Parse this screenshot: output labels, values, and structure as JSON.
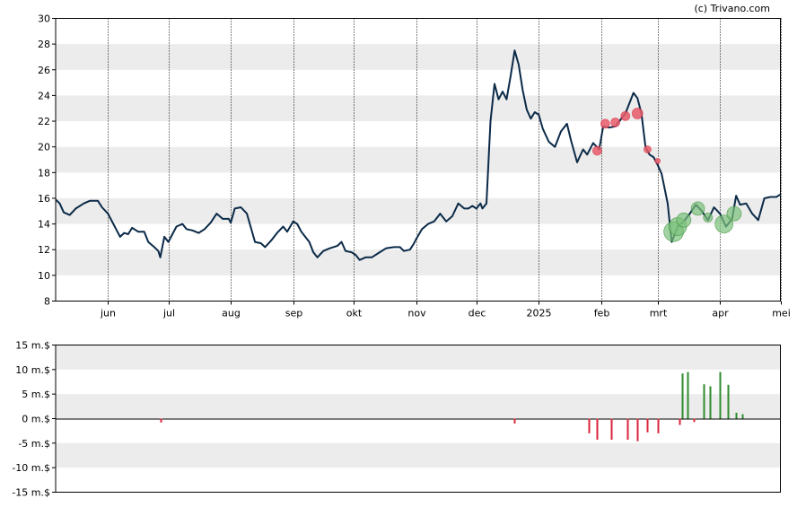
{
  "credit": "(c) Trivano.com",
  "colors": {
    "line": "#0b2a48",
    "band": "#ececec",
    "buy": "#2e8b2e",
    "sell": "#d9263b",
    "buy_marker": "#7ac07a",
    "sell_marker": "#e85a6a"
  },
  "chart_data": [
    {
      "type": "line",
      "title": "",
      "xlabel": "",
      "ylabel": "",
      "ylim": [
        8,
        30
      ],
      "yticks": [
        8,
        10,
        12,
        14,
        16,
        18,
        20,
        22,
        24,
        26,
        28,
        30
      ],
      "xlim": [
        "2024-05-06",
        "2025-05-01"
      ],
      "xticks": [
        {
          "date": "2024-06-01",
          "label": "jun"
        },
        {
          "date": "2024-07-01",
          "label": "jul"
        },
        {
          "date": "2024-08-01",
          "label": "aug"
        },
        {
          "date": "2024-09-01",
          "label": "sep"
        },
        {
          "date": "2024-10-01",
          "label": "okt"
        },
        {
          "date": "2024-11-01",
          "label": "nov"
        },
        {
          "date": "2024-12-01",
          "label": "dec"
        },
        {
          "date": "2025-01-01",
          "label": "2025"
        },
        {
          "date": "2025-02-01",
          "label": "feb"
        },
        {
          "date": "2025-03-01",
          "label": "mrt"
        },
        {
          "date": "2025-04-01",
          "label": "apr"
        },
        {
          "date": "2025-05-01",
          "label": "mei"
        }
      ],
      "grid": "alternating horizontal bands, dotted vertical month lines",
      "series": [
        {
          "points": [
            [
              "2024-05-06",
              15.9
            ],
            [
              "2024-05-08",
              15.6
            ],
            [
              "2024-05-10",
              14.9
            ],
            [
              "2024-05-13",
              14.7
            ],
            [
              "2024-05-16",
              15.2
            ],
            [
              "2024-05-20",
              15.6
            ],
            [
              "2024-05-23",
              15.8
            ],
            [
              "2024-05-27",
              15.8
            ],
            [
              "2024-05-29",
              15.3
            ],
            [
              "2024-06-01",
              14.8
            ],
            [
              "2024-06-03",
              14.2
            ],
            [
              "2024-06-05",
              13.6
            ],
            [
              "2024-06-07",
              13.0
            ],
            [
              "2024-06-09",
              13.3
            ],
            [
              "2024-06-11",
              13.2
            ],
            [
              "2024-06-13",
              13.7
            ],
            [
              "2024-06-16",
              13.4
            ],
            [
              "2024-06-19",
              13.4
            ],
            [
              "2024-06-21",
              12.6
            ],
            [
              "2024-06-24",
              12.2
            ],
            [
              "2024-06-26",
              11.9
            ],
            [
              "2024-06-27",
              11.4
            ],
            [
              "2024-06-29",
              13.0
            ],
            [
              "2024-07-01",
              12.6
            ],
            [
              "2024-07-03",
              13.2
            ],
            [
              "2024-07-05",
              13.8
            ],
            [
              "2024-07-08",
              14.0
            ],
            [
              "2024-07-10",
              13.6
            ],
            [
              "2024-07-13",
              13.5
            ],
            [
              "2024-07-16",
              13.3
            ],
            [
              "2024-07-19",
              13.6
            ],
            [
              "2024-07-22",
              14.1
            ],
            [
              "2024-07-25",
              14.8
            ],
            [
              "2024-07-28",
              14.4
            ],
            [
              "2024-07-31",
              14.4
            ],
            [
              "2024-08-01",
              14.1
            ],
            [
              "2024-08-03",
              15.2
            ],
            [
              "2024-08-06",
              15.3
            ],
            [
              "2024-08-09",
              14.8
            ],
            [
              "2024-08-11",
              13.7
            ],
            [
              "2024-08-13",
              12.6
            ],
            [
              "2024-08-16",
              12.5
            ],
            [
              "2024-08-18",
              12.2
            ],
            [
              "2024-08-21",
              12.7
            ],
            [
              "2024-08-24",
              13.3
            ],
            [
              "2024-08-27",
              13.8
            ],
            [
              "2024-08-29",
              13.4
            ],
            [
              "2024-09-01",
              14.2
            ],
            [
              "2024-09-03",
              14.0
            ],
            [
              "2024-09-05",
              13.4
            ],
            [
              "2024-09-07",
              13.0
            ],
            [
              "2024-09-09",
              12.6
            ],
            [
              "2024-09-11",
              11.8
            ],
            [
              "2024-09-13",
              11.4
            ],
            [
              "2024-09-16",
              11.9
            ],
            [
              "2024-09-19",
              12.1
            ],
            [
              "2024-09-23",
              12.3
            ],
            [
              "2024-09-25",
              12.6
            ],
            [
              "2024-09-27",
              11.9
            ],
            [
              "2024-09-30",
              11.8
            ],
            [
              "2024-10-02",
              11.6
            ],
            [
              "2024-10-04",
              11.2
            ],
            [
              "2024-10-07",
              11.4
            ],
            [
              "2024-10-10",
              11.4
            ],
            [
              "2024-10-14",
              11.8
            ],
            [
              "2024-10-17",
              12.1
            ],
            [
              "2024-10-21",
              12.2
            ],
            [
              "2024-10-24",
              12.2
            ],
            [
              "2024-10-26",
              11.9
            ],
            [
              "2024-10-29",
              12.0
            ],
            [
              "2024-10-31",
              12.5
            ],
            [
              "2024-11-01",
              12.8
            ],
            [
              "2024-11-04",
              13.6
            ],
            [
              "2024-11-07",
              14.0
            ],
            [
              "2024-11-10",
              14.2
            ],
            [
              "2024-11-13",
              14.8
            ],
            [
              "2024-11-16",
              14.2
            ],
            [
              "2024-11-19",
              14.6
            ],
            [
              "2024-11-22",
              15.6
            ],
            [
              "2024-11-25",
              15.2
            ],
            [
              "2024-11-27",
              15.2
            ],
            [
              "2024-11-29",
              15.4
            ],
            [
              "2024-12-01",
              15.2
            ],
            [
              "2024-12-03",
              15.6
            ],
            [
              "2024-12-04",
              15.2
            ],
            [
              "2024-12-06",
              15.6
            ],
            [
              "2024-12-08",
              22.0
            ],
            [
              "2024-12-10",
              24.9
            ],
            [
              "2024-12-12",
              23.7
            ],
            [
              "2024-12-14",
              24.3
            ],
            [
              "2024-12-16",
              23.7
            ],
            [
              "2024-12-18",
              25.5
            ],
            [
              "2024-12-20",
              27.5
            ],
            [
              "2024-12-22",
              26.4
            ],
            [
              "2024-12-24",
              24.4
            ],
            [
              "2024-12-26",
              22.9
            ],
            [
              "2024-12-28",
              22.2
            ],
            [
              "2024-12-30",
              22.7
            ],
            [
              "2025-01-01",
              22.5
            ],
            [
              "2025-01-03",
              21.4
            ],
            [
              "2025-01-06",
              20.4
            ],
            [
              "2025-01-09",
              20.0
            ],
            [
              "2025-01-12",
              21.2
            ],
            [
              "2025-01-15",
              21.8
            ],
            [
              "2025-01-17",
              20.5
            ],
            [
              "2025-01-20",
              18.8
            ],
            [
              "2025-01-23",
              19.8
            ],
            [
              "2025-01-25",
              19.4
            ],
            [
              "2025-01-28",
              20.3
            ],
            [
              "2025-01-31",
              19.8
            ],
            [
              "2025-02-02",
              21.6
            ],
            [
              "2025-02-05",
              21.5
            ],
            [
              "2025-02-08",
              21.6
            ],
            [
              "2025-02-11",
              22.2
            ],
            [
              "2025-02-13",
              22.6
            ],
            [
              "2025-02-15",
              23.4
            ],
            [
              "2025-02-17",
              24.2
            ],
            [
              "2025-02-19",
              23.8
            ],
            [
              "2025-02-21",
              22.6
            ],
            [
              "2025-02-23",
              20.0
            ],
            [
              "2025-02-25",
              19.4
            ],
            [
              "2025-02-27",
              19.2
            ],
            [
              "2025-03-01",
              18.6
            ],
            [
              "2025-03-03",
              17.9
            ],
            [
              "2025-03-06",
              15.6
            ],
            [
              "2025-03-08",
              12.6
            ],
            [
              "2025-03-11",
              13.8
            ],
            [
              "2025-03-14",
              14.2
            ],
            [
              "2025-03-17",
              14.8
            ],
            [
              "2025-03-20",
              15.5
            ],
            [
              "2025-03-23",
              15.0
            ],
            [
              "2025-03-26",
              14.3
            ],
            [
              "2025-03-29",
              15.3
            ],
            [
              "2025-04-01",
              14.8
            ],
            [
              "2025-04-04",
              13.8
            ],
            [
              "2025-04-07",
              14.4
            ],
            [
              "2025-04-09",
              16.2
            ],
            [
              "2025-04-11",
              15.5
            ],
            [
              "2025-04-14",
              15.6
            ],
            [
              "2025-04-17",
              14.8
            ],
            [
              "2025-04-20",
              14.3
            ],
            [
              "2025-04-23",
              16.0
            ],
            [
              "2025-04-26",
              16.1
            ],
            [
              "2025-04-29",
              16.1
            ],
            [
              "2025-05-01",
              16.3
            ]
          ]
        }
      ],
      "markers": [
        {
          "type": "sell",
          "date": "2025-01-30",
          "y": 19.7,
          "size": 1.0
        },
        {
          "type": "sell",
          "date": "2025-02-03",
          "y": 21.8,
          "size": 1.0
        },
        {
          "type": "sell",
          "date": "2025-02-08",
          "y": 21.9,
          "size": 1.0
        },
        {
          "type": "sell",
          "date": "2025-02-13",
          "y": 22.4,
          "size": 1.0
        },
        {
          "type": "sell",
          "date": "2025-02-19",
          "y": 22.6,
          "size": 1.2
        },
        {
          "type": "sell",
          "date": "2025-02-24",
          "y": 19.8,
          "size": 0.8
        },
        {
          "type": "sell",
          "date": "2025-03-01",
          "y": 18.9,
          "size": 0.6
        },
        {
          "type": "buy",
          "date": "2025-03-09",
          "y": 13.4,
          "size": 2.2
        },
        {
          "type": "buy",
          "date": "2025-03-11",
          "y": 13.8,
          "size": 2.0
        },
        {
          "type": "buy",
          "date": "2025-03-14",
          "y": 14.3,
          "size": 1.6
        },
        {
          "type": "buy",
          "date": "2025-03-21",
          "y": 15.2,
          "size": 1.5
        },
        {
          "type": "buy",
          "date": "2025-03-26",
          "y": 14.5,
          "size": 1.0
        },
        {
          "type": "buy",
          "date": "2025-04-03",
          "y": 14.0,
          "size": 2.0
        },
        {
          "type": "buy",
          "date": "2025-04-08",
          "y": 14.8,
          "size": 1.6
        }
      ]
    },
    {
      "type": "bar",
      "title": "",
      "xlabel": "",
      "ylabel": "",
      "ylim": [
        -15,
        15
      ],
      "yticks": [
        {
          "value": 15,
          "label": "15 m.$"
        },
        {
          "value": 10,
          "label": "10 m.$"
        },
        {
          "value": 5,
          "label": "5 m.$"
        },
        {
          "value": 0,
          "label": "0 m.$"
        },
        {
          "value": -5,
          "label": "-5 m.$"
        },
        {
          "value": -10,
          "label": "-10 m.$"
        },
        {
          "value": -15,
          "label": "-15 m.$"
        }
      ],
      "xlim": [
        "2024-05-06",
        "2025-05-01"
      ],
      "grid": "alternating horizontal bands",
      "series": [
        {
          "bars": [
            [
              "2024-06-27",
              -0.8
            ],
            [
              "2024-12-20",
              -1.0
            ],
            [
              "2025-01-26",
              -3.0
            ],
            [
              "2025-01-30",
              -4.3
            ],
            [
              "2025-02-06",
              -4.3
            ],
            [
              "2025-02-14",
              -4.3
            ],
            [
              "2025-02-19",
              -4.6
            ],
            [
              "2025-02-24",
              -2.8
            ],
            [
              "2025-03-01",
              -3.0
            ],
            [
              "2025-03-12",
              -1.3
            ],
            [
              "2025-03-13",
              9.2
            ],
            [
              "2025-03-16",
              9.5
            ],
            [
              "2025-03-19",
              -0.7
            ],
            [
              "2025-03-24",
              7.0
            ],
            [
              "2025-03-27",
              6.6
            ],
            [
              "2025-04-01",
              9.5
            ],
            [
              "2025-04-05",
              6.9
            ],
            [
              "2025-04-09",
              1.2
            ],
            [
              "2025-04-12",
              0.9
            ]
          ]
        }
      ]
    }
  ]
}
